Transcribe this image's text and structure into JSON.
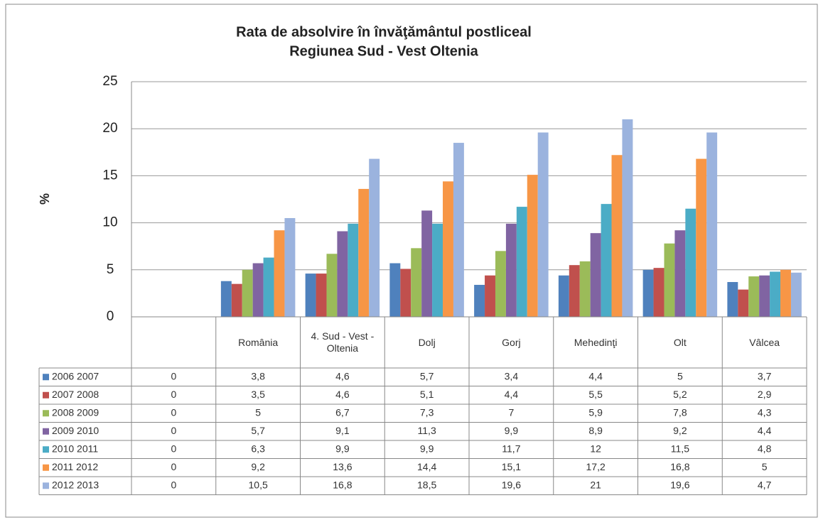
{
  "chart_data": {
    "type": "bar",
    "title": [
      "Rata de absolvire în învăţământul postliceal",
      "Regiunea Sud - Vest Oltenia"
    ],
    "y_label": "%",
    "categories": [
      null,
      "România",
      "4. Sud - Vest - Oltenia",
      "Dolj",
      "Gorj",
      "Mehedinţi",
      "Olt",
      "Vâlcea"
    ],
    "ylim": [
      0,
      25
    ],
    "yticks": [
      0,
      5,
      10,
      15,
      20,
      25
    ],
    "grid": true,
    "series": [
      {
        "name": "2006 2007",
        "color": "#4f81bd",
        "values": [
          0,
          3.8,
          4.6,
          5.7,
          3.4,
          4.4,
          5,
          3.7
        ],
        "value_labels": [
          "0",
          "3,8",
          "4,6",
          "5,7",
          "3,4",
          "4,4",
          "5",
          "3,7"
        ]
      },
      {
        "name": "2007 2008",
        "color": "#c0504d",
        "values": [
          0,
          3.5,
          4.6,
          5.1,
          4.4,
          5.5,
          5.2,
          2.9
        ],
        "value_labels": [
          "0",
          "3,5",
          "4,6",
          "5,1",
          "4,4",
          "5,5",
          "5,2",
          "2,9"
        ]
      },
      {
        "name": "2008 2009",
        "color": "#9bbb59",
        "values": [
          0,
          5,
          6.7,
          7.3,
          7,
          5.9,
          7.8,
          4.3
        ],
        "value_labels": [
          "0",
          "5",
          "6,7",
          "7,3",
          "7",
          "5,9",
          "7,8",
          "4,3"
        ]
      },
      {
        "name": "2009 2010",
        "color": "#8064a2",
        "values": [
          0,
          5.7,
          9.1,
          11.3,
          9.9,
          8.9,
          9.2,
          4.4
        ],
        "value_labels": [
          "0",
          "5,7",
          "9,1",
          "11,3",
          "9,9",
          "8,9",
          "9,2",
          "4,4"
        ]
      },
      {
        "name": "2010 2011",
        "color": "#4bacc6",
        "values": [
          0,
          6.3,
          9.9,
          9.9,
          11.7,
          12,
          11.5,
          4.8
        ],
        "value_labels": [
          "0",
          "6,3",
          "9,9",
          "9,9",
          "11,7",
          "12",
          "11,5",
          "4,8"
        ]
      },
      {
        "name": "2011 2012",
        "color": "#f79646",
        "values": [
          0,
          9.2,
          13.6,
          14.4,
          15.1,
          17.2,
          16.8,
          5
        ],
        "value_labels": [
          "0",
          "9,2",
          "13,6",
          "14,4",
          "15,1",
          "17,2",
          "16,8",
          "5"
        ]
      },
      {
        "name": "2012 2013",
        "color": "#9bb3de",
        "values": [
          0,
          10.5,
          16.8,
          18.5,
          19.6,
          21,
          19.6,
          4.7
        ],
        "value_labels": [
          "0",
          "10,5",
          "16,8",
          "18,5",
          "19,6",
          "21",
          "19,6",
          "4,7"
        ]
      }
    ]
  }
}
